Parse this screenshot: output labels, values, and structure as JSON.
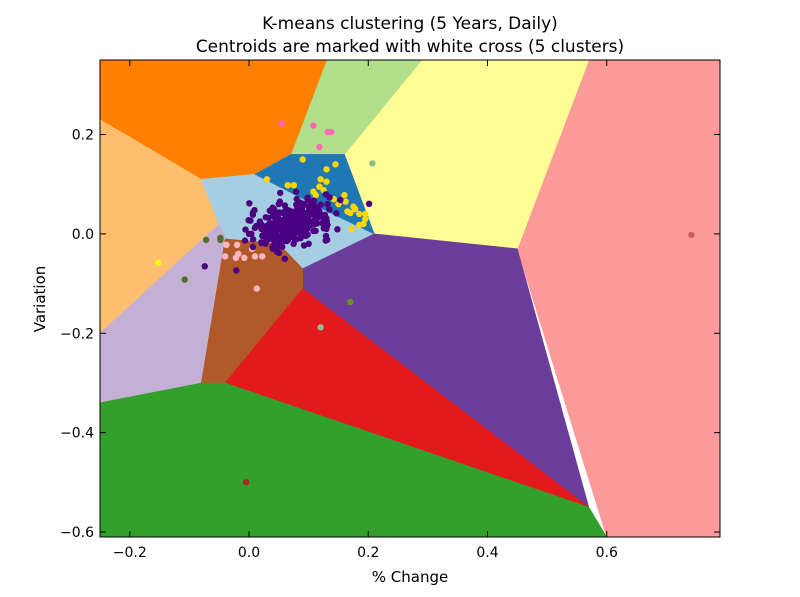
{
  "chart_data": {
    "type": "scatter",
    "title": "K-means clustering (5 Years, Daily)",
    "subtitle": "Centroids are marked with white cross (5 clusters)",
    "xlabel": "% Change",
    "ylabel": "Variation",
    "xlim": [
      -0.25,
      0.79
    ],
    "ylim": [
      -0.61,
      0.35
    ],
    "xticks": [
      -0.2,
      0.0,
      0.2,
      0.4,
      0.6
    ],
    "yticks": [
      0.2,
      0.0,
      -0.2,
      -0.4,
      -0.6
    ],
    "xtick_labels": [
      "−0.2",
      "0.0",
      "0.2",
      "0.4",
      "0.6"
    ],
    "ytick_labels": [
      "0.2",
      "0.0",
      "−0.2",
      "−0.4",
      "−0.6"
    ],
    "grid": false,
    "regions": [
      {
        "color": "#fb9a99",
        "polygon": [
          [
            0.57,
            0.35
          ],
          [
            0.79,
            0.35
          ],
          [
            0.79,
            -0.61
          ],
          [
            0.6,
            -0.61
          ],
          [
            0.45,
            -0.03
          ]
        ]
      },
      {
        "color": "#fffe94",
        "polygon": [
          [
            0.29,
            0.35
          ],
          [
            0.57,
            0.35
          ],
          [
            0.45,
            -0.03
          ],
          [
            0.21,
            0.0
          ],
          [
            0.16,
            0.16
          ]
        ]
      },
      {
        "color": "#b2df8a",
        "polygon": [
          [
            0.13,
            0.35
          ],
          [
            0.29,
            0.35
          ],
          [
            0.16,
            0.16
          ],
          [
            0.07,
            0.16
          ]
        ]
      },
      {
        "color": "#ff7f00",
        "polygon": [
          [
            -0.25,
            0.35
          ],
          [
            0.13,
            0.35
          ],
          [
            0.07,
            0.16
          ],
          [
            0.01,
            0.12
          ],
          [
            -0.08,
            0.11
          ],
          [
            -0.25,
            0.23
          ]
        ]
      },
      {
        "color": "#fdbf6f",
        "polygon": [
          [
            -0.25,
            0.23
          ],
          [
            -0.08,
            0.11
          ],
          [
            -0.05,
            0.02
          ],
          [
            -0.25,
            -0.2
          ]
        ]
      },
      {
        "color": "#a6cee3",
        "polygon": [
          [
            -0.08,
            0.11
          ],
          [
            0.01,
            0.12
          ],
          [
            0.07,
            0.16
          ],
          [
            0.16,
            0.16
          ],
          [
            0.21,
            0.0
          ],
          [
            0.09,
            -0.07
          ],
          [
            0.05,
            -0.02
          ],
          [
            -0.04,
            -0.01
          ],
          [
            -0.05,
            0.02
          ]
        ]
      },
      {
        "color": "#1f78b4",
        "polygon": [
          [
            0.01,
            0.12
          ],
          [
            0.07,
            0.16
          ],
          [
            0.16,
            0.16
          ],
          [
            0.21,
            0.0
          ],
          [
            0.14,
            0.04
          ]
        ]
      },
      {
        "color": "#6a3d9a",
        "polygon": [
          [
            0.21,
            0.0
          ],
          [
            0.45,
            -0.03
          ],
          [
            0.57,
            -0.55
          ],
          [
            0.09,
            -0.11
          ],
          [
            0.09,
            -0.07
          ]
        ]
      },
      {
        "color": "#c5b0d5",
        "polygon": [
          [
            -0.25,
            -0.2
          ],
          [
            -0.05,
            0.02
          ],
          [
            -0.04,
            -0.01
          ],
          [
            -0.08,
            -0.3
          ],
          [
            -0.25,
            -0.34
          ]
        ]
      },
      {
        "color": "#b15928",
        "polygon": [
          [
            -0.04,
            -0.01
          ],
          [
            0.05,
            -0.02
          ],
          [
            0.09,
            -0.07
          ],
          [
            0.09,
            -0.11
          ],
          [
            -0.04,
            -0.3
          ],
          [
            -0.08,
            -0.3
          ]
        ]
      },
      {
        "color": "#e31a1c",
        "polygon": [
          [
            0.09,
            -0.11
          ],
          [
            0.57,
            -0.55
          ],
          [
            -0.04,
            -0.3
          ]
        ]
      },
      {
        "color": "#33a02c",
        "polygon": [
          [
            -0.25,
            -0.34
          ],
          [
            -0.08,
            -0.3
          ],
          [
            -0.04,
            -0.3
          ],
          [
            0.57,
            -0.55
          ],
          [
            0.6,
            -0.61
          ],
          [
            -0.25,
            -0.61
          ]
        ]
      }
    ],
    "points": [
      {
        "color": "#ff69b4",
        "data": [
          [
            0.055,
            0.222
          ],
          [
            0.108,
            0.218
          ],
          [
            0.132,
            0.205
          ],
          [
            0.138,
            0.205
          ],
          [
            0.118,
            0.175
          ]
        ]
      },
      {
        "color": "#8fbc8f",
        "data": [
          [
            0.207,
            0.142
          ],
          [
            0.12,
            -0.188
          ]
        ]
      },
      {
        "color": "#ffd700",
        "data": [
          [
            0.09,
            0.15
          ],
          [
            0.145,
            0.14
          ],
          [
            0.13,
            0.13
          ],
          [
            0.12,
            0.11
          ],
          [
            0.118,
            0.095
          ],
          [
            0.108,
            0.085
          ],
          [
            0.112,
            0.078
          ],
          [
            0.16,
            0.078
          ],
          [
            0.162,
            0.065
          ],
          [
            0.175,
            0.055
          ],
          [
            0.178,
            0.05
          ],
          [
            0.17,
            0.042
          ],
          [
            0.195,
            0.04
          ],
          [
            0.195,
            0.03
          ],
          [
            0.185,
            0.018
          ],
          [
            0.172,
            0.01
          ],
          [
            0.13,
            0.105
          ],
          [
            0.03,
            0.11
          ],
          [
            0.065,
            0.098
          ],
          [
            0.075,
            0.098
          ],
          [
            0.15,
            0.06
          ],
          [
            0.185,
            0.04
          ],
          [
            0.192,
            0.02
          ],
          [
            0.165,
            0.045
          ],
          [
            0.142,
            0.07
          ],
          [
            0.125,
            0.088
          ]
        ]
      },
      {
        "color": "#ffff00",
        "data": [
          [
            -0.152,
            -0.058
          ]
        ]
      },
      {
        "color": "#556b2f",
        "data": [
          [
            -0.072,
            -0.012
          ],
          [
            -0.048,
            -0.008
          ],
          [
            -0.048,
            -0.012
          ],
          [
            -0.108,
            -0.092
          ]
        ]
      },
      {
        "color": "#6b8e23",
        "data": [
          [
            0.17,
            -0.137
          ]
        ]
      },
      {
        "color": "#ffb6c1",
        "data": [
          [
            -0.02,
            -0.022
          ],
          [
            -0.038,
            -0.022
          ],
          [
            -0.04,
            -0.045
          ],
          [
            -0.018,
            -0.04
          ],
          [
            -0.022,
            -0.048
          ],
          [
            0.01,
            -0.045
          ],
          [
            0.013,
            -0.11
          ],
          [
            0.005,
            -0.03
          ],
          [
            -0.008,
            -0.048
          ],
          [
            0.022,
            -0.045
          ]
        ]
      },
      {
        "color": "#cd5c5c",
        "data": [
          [
            0.742,
            -0.002
          ]
        ]
      },
      {
        "color": "#b22222",
        "data": [
          [
            -0.005,
            -0.5
          ]
        ]
      },
      {
        "color": "#4b0082",
        "cluster_center": [
          0.07,
          0.02
        ],
        "spread": [
          0.075,
          0.045
        ],
        "count": 320,
        "data": [
          [
            0.06,
            -0.05
          ],
          [
            0.04,
            -0.03
          ],
          [
            0.05,
            0.06
          ],
          [
            0.08,
            0.07
          ],
          [
            0.12,
            0.04
          ],
          [
            0.13,
            0.01
          ],
          [
            0.02,
            0.02
          ],
          [
            0.0,
            0.0
          ],
          [
            0.1,
            -0.02
          ]
        ]
      }
    ]
  }
}
